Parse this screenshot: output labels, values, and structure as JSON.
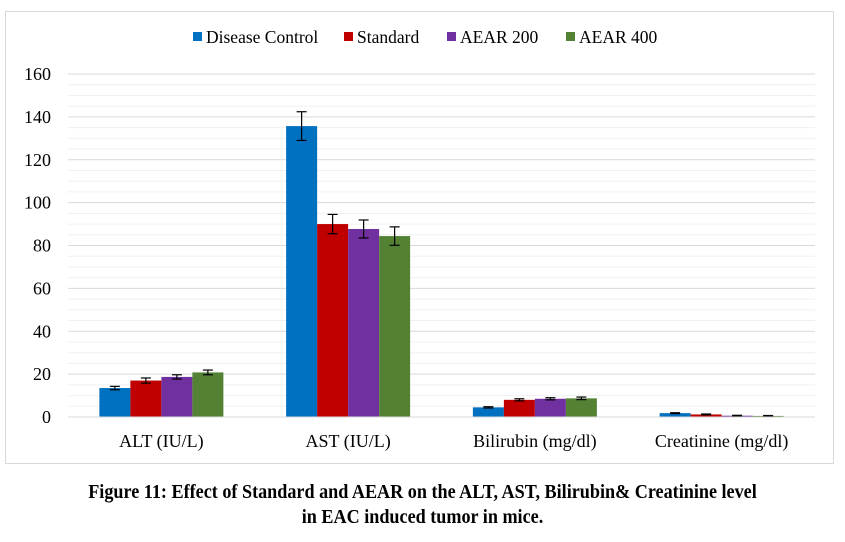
{
  "chart_data": {
    "type": "bar",
    "title": "",
    "xlabel": "",
    "ylabel": "",
    "ylim": [
      0,
      160
    ],
    "yticks": [
      0,
      20,
      40,
      60,
      80,
      100,
      120,
      140,
      160
    ],
    "ytick_labels": [
      "0",
      "20",
      "40",
      "60",
      "80",
      "100",
      "120",
      "140",
      "160"
    ],
    "minor_grid_step": 5,
    "grid": true,
    "legend_position": "top-center",
    "categories": [
      "ALT (IU/L)",
      "AST (IU/L)",
      "Bilirubin (mg/dl)",
      "Creatinine (mg/dl)"
    ],
    "series": [
      {
        "name": "Disease Control",
        "color": "#0070c0",
        "values": [
          13.5,
          135.7,
          4.5,
          1.8
        ],
        "errors": [
          0.8,
          6.7,
          0.3,
          0.2
        ]
      },
      {
        "name": "Standard",
        "color": "#c00000",
        "values": [
          17.0,
          90.0,
          8.0,
          1.2
        ],
        "errors": [
          1.2,
          4.5,
          0.5,
          0.2
        ]
      },
      {
        "name": "AEAR 200",
        "color": "#7030a0",
        "values": [
          18.7,
          87.7,
          8.5,
          0.6
        ],
        "errors": [
          1.0,
          4.2,
          0.5,
          0.2
        ]
      },
      {
        "name": "AEAR 400",
        "color": "#548235",
        "values": [
          20.8,
          84.4,
          8.7,
          0.5
        ],
        "errors": [
          1.1,
          4.3,
          0.6,
          0.2
        ]
      }
    ]
  },
  "caption": {
    "line1": "Figure 11: Effect of Standard and AEAR on the ALT, AST, Bilirubin& Creatinine level",
    "line2": "in EAC induced tumor in mice."
  }
}
